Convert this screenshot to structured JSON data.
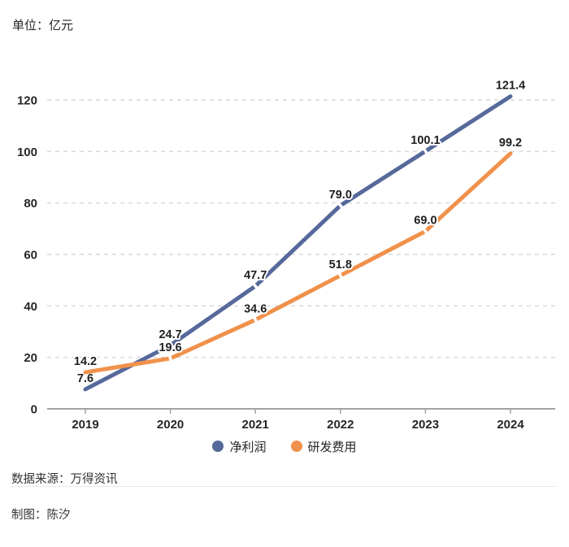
{
  "unit_label": "单位：亿元",
  "source_label": "数据来源：万得资讯",
  "credit_label": "制图：陈汐",
  "colors": {
    "net_profit_line": "#56699B",
    "rd_expense_line": "#F0914B",
    "grid_dashed": "#D9D9D9",
    "axis_line": "#A3A3A3",
    "axis_text": "#262626",
    "value_text": "#1F1F1F",
    "divider": "#E8E8E8",
    "background": "#FFFFFF"
  },
  "chart_data": {
    "type": "line",
    "title": "",
    "unit": "亿元",
    "categories": [
      "2019",
      "2020",
      "2021",
      "2022",
      "2023",
      "2024"
    ],
    "series": [
      {
        "name": "净利润",
        "color": "#56699B",
        "values": [
          7.6,
          24.7,
          47.7,
          79.0,
          100.1,
          121.4
        ]
      },
      {
        "name": "研发费用",
        "color": "#F0914B",
        "values": [
          14.2,
          19.6,
          34.6,
          51.8,
          69.0,
          99.2
        ]
      }
    ],
    "xlabel": "",
    "ylabel": "",
    "ylim": [
      0,
      120
    ],
    "yticks": [
      0,
      20,
      40,
      60,
      80,
      100,
      120
    ],
    "grid": "dashed-horizontal",
    "legend_position": "bottom",
    "data_labels": true
  }
}
